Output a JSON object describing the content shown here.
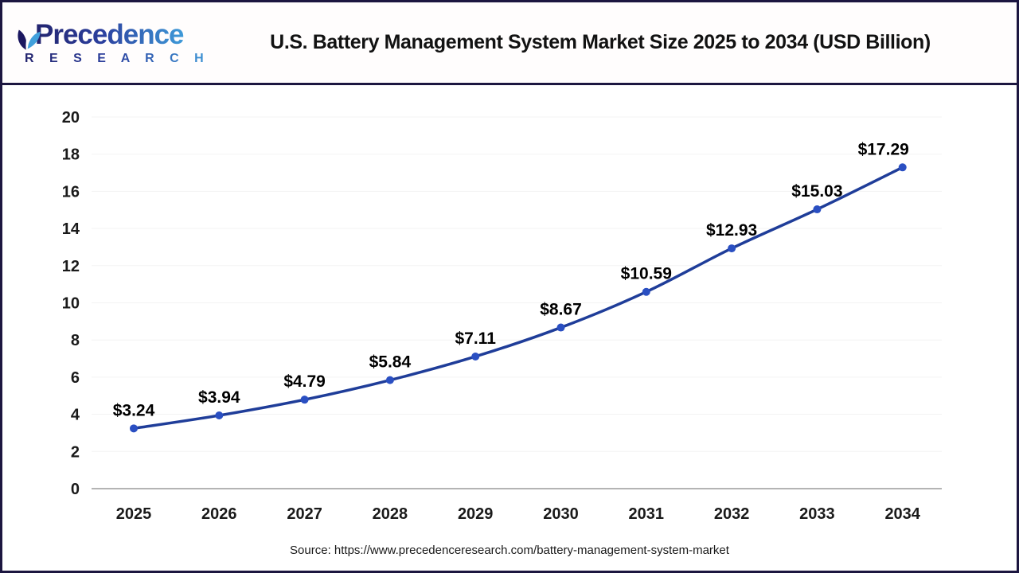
{
  "header": {
    "logo": {
      "name": "Precedence",
      "subname": "R E S E A R C H"
    },
    "title": "U.S. Battery Management System Market Size 2025 to 2034 (USD Billion)"
  },
  "chart_data": {
    "type": "line",
    "title": "U.S. Battery Management System Market Size 2025 to 2034 (USD Billion)",
    "categories": [
      "2025",
      "2026",
      "2027",
      "2028",
      "2029",
      "2030",
      "2031",
      "2032",
      "2033",
      "2034"
    ],
    "series": [
      {
        "name": "U.S. Battery Management System Market Size (USD Billion)",
        "values": [
          3.24,
          3.94,
          4.79,
          5.84,
          7.11,
          8.67,
          10.59,
          12.93,
          15.03,
          17.29
        ]
      }
    ],
    "value_prefix": "$",
    "xlabel": "",
    "ylabel": "",
    "ylim": [
      0,
      20
    ],
    "ytick_step": 2,
    "yticks": [
      0,
      2,
      4,
      6,
      8,
      10,
      12,
      14,
      16,
      18,
      20
    ],
    "grid": true,
    "legend": "none",
    "colors": {
      "line": "#1f3d99",
      "marker": "#2a4fc2",
      "data_label": "#000000",
      "tick_label": "#1a1a1a",
      "axis_line": "#9b9b9b",
      "grid_line": "#f3f3f3"
    }
  },
  "footer": {
    "source": "Source: https://www.precedenceresearch.com/battery-management-system-market"
  },
  "brand_colors": {
    "border_navy": "#1c1640",
    "logo_dark": "#23246e",
    "logo_light": "#3f9bd9"
  }
}
